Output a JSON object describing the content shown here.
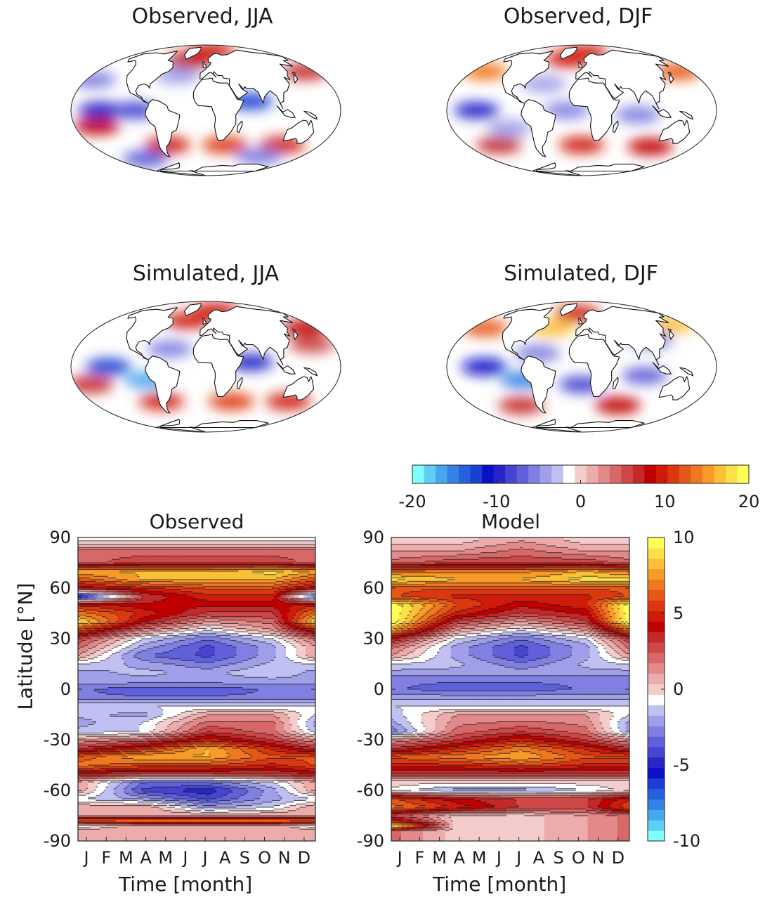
{
  "chart_data": [
    {
      "type": "heatmap",
      "title": "Observed, JJA",
      "projection": "mollweide",
      "colorbar": "top-colorbar",
      "regions": [
        {
          "lat": 0,
          "lon": -140,
          "value": -10
        },
        {
          "lat": 0,
          "lon": -95,
          "value": -8
        },
        {
          "lat": -18,
          "lon": -150,
          "value": 8
        },
        {
          "lat": -40,
          "lon": -60,
          "value": 10
        },
        {
          "lat": -40,
          "lon": 30,
          "value": 11
        },
        {
          "lat": -40,
          "lon": 120,
          "value": 10
        },
        {
          "lat": 60,
          "lon": -35,
          "value": 8
        },
        {
          "lat": 75,
          "lon": 20,
          "value": 9
        },
        {
          "lat": 10,
          "lon": 60,
          "value": -12
        },
        {
          "lat": -58,
          "lon": -120,
          "value": -7
        },
        {
          "lat": -55,
          "lon": 100,
          "value": -6
        },
        {
          "lat": 35,
          "lon": -170,
          "value": -5
        },
        {
          "lat": 40,
          "lon": -45,
          "value": -4
        },
        {
          "lat": 45,
          "lon": 165,
          "value": 7
        }
      ]
    },
    {
      "type": "heatmap",
      "title": "Observed, DJF",
      "projection": "mollweide",
      "colorbar": "top-colorbar",
      "regions": [
        {
          "lat": 0,
          "lon": -140,
          "value": -10
        },
        {
          "lat": 0,
          "lon": -20,
          "value": -6
        },
        {
          "lat": -5,
          "lon": 75,
          "value": -5
        },
        {
          "lat": 45,
          "lon": -160,
          "value": 14
        },
        {
          "lat": 45,
          "lon": 160,
          "value": 12
        },
        {
          "lat": 62,
          "lon": -30,
          "value": 9
        },
        {
          "lat": 72,
          "lon": 10,
          "value": 9
        },
        {
          "lat": -40,
          "lon": -130,
          "value": 7
        },
        {
          "lat": -40,
          "lon": 0,
          "value": 9
        },
        {
          "lat": -42,
          "lon": 110,
          "value": 8
        },
        {
          "lat": 30,
          "lon": -55,
          "value": -4
        },
        {
          "lat": -20,
          "lon": -100,
          "value": -4
        }
      ]
    },
    {
      "type": "heatmap",
      "title": "Simulated, JJA",
      "projection": "mollweide",
      "colorbar": "top-colorbar",
      "regions": [
        {
          "lat": 0,
          "lon": -130,
          "value": -12
        },
        {
          "lat": -15,
          "lon": -80,
          "value": -16
        },
        {
          "lat": 5,
          "lon": 60,
          "value": -10
        },
        {
          "lat": 20,
          "lon": -50,
          "value": -6
        },
        {
          "lat": -40,
          "lon": -70,
          "value": 10
        },
        {
          "lat": -40,
          "lon": 40,
          "value": 11
        },
        {
          "lat": -40,
          "lon": 130,
          "value": 10
        },
        {
          "lat": 55,
          "lon": -35,
          "value": 9
        },
        {
          "lat": 70,
          "lon": 25,
          "value": 9
        },
        {
          "lat": 45,
          "lon": 165,
          "value": 8
        },
        {
          "lat": -20,
          "lon": -160,
          "value": 7
        },
        {
          "lat": 25,
          "lon": 150,
          "value": 6
        }
      ]
    },
    {
      "type": "heatmap",
      "title": "Simulated, DJF",
      "projection": "mollweide",
      "colorbar": "top-colorbar",
      "regions": [
        {
          "lat": 0,
          "lon": -130,
          "value": -11
        },
        {
          "lat": -15,
          "lon": -80,
          "value": -15
        },
        {
          "lat": -20,
          "lon": 0,
          "value": -8
        },
        {
          "lat": -10,
          "lon": 85,
          "value": -7
        },
        {
          "lat": 15,
          "lon": -60,
          "value": -6
        },
        {
          "lat": 45,
          "lon": -50,
          "value": 16
        },
        {
          "lat": 50,
          "lon": 160,
          "value": 17
        },
        {
          "lat": 45,
          "lon": -160,
          "value": 12
        },
        {
          "lat": 65,
          "lon": -10,
          "value": 10
        },
        {
          "lat": -45,
          "lon": -100,
          "value": 7
        },
        {
          "lat": -45,
          "lon": 60,
          "value": 8
        },
        {
          "lat": 30,
          "lon": 100,
          "value": -5
        }
      ]
    },
    {
      "type": "heatmap",
      "title": "Observed",
      "xlabel": "Time [month]",
      "ylabel": "Latitude [°N]",
      "x_categories": [
        "J",
        "F",
        "M",
        "A",
        "M",
        "J",
        "J",
        "A",
        "S",
        "O",
        "N",
        "D"
      ],
      "yticks": [
        90,
        60,
        30,
        0,
        -30,
        -60,
        -90
      ],
      "ylim": [
        -90,
        90
      ],
      "colorbar": "side-colorbar",
      "latitudes": [
        88,
        82,
        75,
        70,
        65,
        60,
        55,
        50,
        45,
        40,
        35,
        30,
        25,
        20,
        15,
        10,
        5,
        0,
        -5,
        -10,
        -15,
        -20,
        -25,
        -30,
        -35,
        -40,
        -45,
        -50,
        -55,
        -60,
        -65,
        -70,
        -75,
        -78,
        -81,
        -84
      ],
      "profiles": [
        {
          "month": "J",
          "values": [
            -0.5,
            2,
            2,
            8,
            6,
            4,
            -6,
            5,
            7,
            9,
            6,
            3,
            2,
            1,
            -1,
            -2,
            -2,
            -3,
            -3,
            -1,
            -1.5,
            -2,
            -1.5,
            1,
            3,
            6,
            7,
            4,
            1,
            1,
            -1,
            1,
            1,
            7,
            -1,
            1
          ]
        },
        {
          "month": "A",
          "values": [
            -0.5,
            2,
            3,
            8,
            8,
            5,
            3,
            4,
            5,
            4,
            1.5,
            -1,
            -2,
            -3,
            -2,
            -1.5,
            -2,
            -3.5,
            -3,
            -1,
            -2,
            -1,
            -1,
            2,
            5,
            8,
            6,
            3,
            -3,
            -4,
            -2,
            1,
            1,
            7,
            1,
            1
          ]
        },
        {
          "month": "J",
          "values": [
            -0.5,
            2,
            3,
            8,
            8,
            6,
            5,
            4,
            3,
            1,
            -1,
            -3,
            -4,
            -4,
            -3,
            -2,
            -2,
            -3.5,
            -3,
            -1,
            1,
            2,
            3,
            5,
            8,
            8,
            6,
            3,
            -3,
            -5,
            -4,
            -2,
            1,
            7,
            1,
            1
          ]
        },
        {
          "month": "O",
          "values": [
            -0.5,
            2,
            3,
            9,
            8,
            6,
            5,
            4,
            3,
            2,
            1,
            -1,
            -2,
            -2,
            -1.5,
            -1,
            -2,
            -3,
            -3,
            -1,
            1,
            2,
            2,
            3,
            5,
            6,
            5,
            3,
            -1,
            -2,
            -2,
            -1,
            1,
            7,
            1,
            1
          ]
        },
        {
          "month": "D",
          "values": [
            -0.5,
            2,
            2,
            8,
            6,
            4,
            -4,
            5,
            7,
            9,
            5,
            2,
            1,
            1,
            -1,
            -2,
            -2,
            -3,
            -3,
            -1,
            -1,
            -2,
            -1.5,
            1,
            3,
            6,
            6,
            4,
            1,
            1,
            -1,
            1,
            1,
            7,
            -1,
            1
          ]
        }
      ]
    },
    {
      "type": "heatmap",
      "title": "Model",
      "xlabel": "Time [month]",
      "x_categories": [
        "J",
        "F",
        "M",
        "A",
        "M",
        "J",
        "J",
        "A",
        "S",
        "O",
        "N",
        "D"
      ],
      "yticks": [
        90,
        60,
        30,
        0,
        -30,
        -60,
        -90
      ],
      "ylim": [
        -90,
        90
      ],
      "colorbar": "side-colorbar",
      "latitudes": [
        88,
        82,
        75,
        70,
        65,
        60,
        55,
        50,
        45,
        40,
        35,
        30,
        25,
        20,
        15,
        10,
        5,
        0,
        -5,
        -10,
        -15,
        -20,
        -25,
        -30,
        -35,
        -40,
        -45,
        -50,
        -55,
        -60,
        -65,
        -70,
        -75,
        -78,
        -81,
        -84
      ],
      "profiles": [
        {
          "month": "J",
          "values": [
            0,
            1,
            2,
            7,
            9,
            6,
            6,
            10,
            10,
            10,
            8,
            4,
            2,
            1,
            -1,
            -2,
            -3,
            -3,
            -2,
            -1,
            -1.5,
            -2,
            -3,
            1,
            3,
            6,
            5,
            3,
            0,
            -0.5,
            6,
            7,
            3,
            5,
            10,
            2
          ]
        },
        {
          "month": "A",
          "values": [
            0,
            1,
            3,
            7,
            8,
            6,
            5,
            6,
            5,
            3,
            1,
            -1,
            -2,
            -2,
            -1.5,
            -2,
            -3,
            -3.5,
            -2,
            -1,
            1,
            1.5,
            2,
            3,
            5,
            7,
            5,
            3,
            0,
            -2,
            4,
            5,
            0,
            0,
            0,
            0
          ]
        },
        {
          "month": "J",
          "values": [
            1,
            2,
            3,
            7,
            8,
            6,
            5,
            4,
            3,
            1,
            -1,
            -3,
            -4,
            -4,
            -3,
            -2,
            -3,
            -3.5,
            -2,
            -1,
            1,
            2,
            3,
            5,
            7,
            8,
            6,
            3,
            0,
            -2,
            3,
            3,
            0,
            0,
            0,
            0
          ]
        },
        {
          "month": "O",
          "values": [
            0,
            1,
            3,
            8,
            9,
            6,
            5,
            5,
            4,
            3,
            1,
            -1,
            -2,
            -2,
            -1.5,
            -2,
            -3,
            -3,
            -2,
            -1,
            1,
            1.5,
            2,
            3,
            5,
            6,
            5,
            3,
            0,
            -1,
            3,
            3,
            1,
            1,
            1,
            1
          ]
        },
        {
          "month": "D",
          "values": [
            0,
            1,
            2,
            7,
            9,
            6,
            6,
            10,
            10,
            10,
            7,
            3,
            2,
            1,
            -1,
            -2,
            -3,
            -3,
            -2,
            -1,
            -1,
            -2,
            -2,
            1,
            3,
            6,
            5,
            3,
            0,
            0,
            5,
            6,
            2,
            2,
            2,
            2
          ]
        }
      ]
    }
  ],
  "titles": {
    "obs_jja": "Observed, JJA",
    "obs_djf": "Observed, DJF",
    "sim_jja": "Simulated, JJA",
    "sim_djf": "Simulated, DJF",
    "hov_obs": "Observed",
    "hov_model": "Model"
  },
  "axes": {
    "ylabel": "Latitude [°N]",
    "xlabel": "Time [month]",
    "yticks": [
      "90",
      "60",
      "30",
      "0",
      "-30",
      "-60",
      "-90"
    ],
    "months": [
      "J",
      "F",
      "M",
      "A",
      "M",
      "J",
      "J",
      "A",
      "S",
      "O",
      "N",
      "D"
    ]
  },
  "top_colorbar": {
    "min": -20,
    "max": 20,
    "tick_labels": [
      "-20",
      "-10",
      "0",
      "10",
      "20"
    ],
    "colors": [
      "#80ffff",
      "#5fd0f5",
      "#48a8ee",
      "#3582e6",
      "#2660dc",
      "#1a40d2",
      "#0a10c8",
      "#2525c8",
      "#4545d2",
      "#6060da",
      "#8080e2",
      "#a0a0ea",
      "#c0c0f2",
      "#ffffff",
      "#f4cccc",
      "#ecacac",
      "#e28a8a",
      "#d86868",
      "#ce4848",
      "#c42828",
      "#c00000",
      "#d01a0a",
      "#dc3810",
      "#e65818",
      "#f07820",
      "#f89a28",
      "#fcc038",
      "#fce048",
      "#ffff55"
    ]
  },
  "side_colorbar": {
    "min": -10,
    "max": 10,
    "tick_labels": [
      "10",
      "5",
      "0",
      "-5",
      "-10"
    ],
    "colors": [
      "#80ffff",
      "#5fd0f5",
      "#48a8ee",
      "#3582e6",
      "#2660dc",
      "#1a40d2",
      "#0a10c8",
      "#2525c8",
      "#4545d2",
      "#6060da",
      "#8080e2",
      "#a0a0ea",
      "#c0c0f2",
      "#ffffff",
      "#f4cccc",
      "#ecacac",
      "#e28a8a",
      "#d86868",
      "#ce4848",
      "#c42828",
      "#c00000",
      "#d01a0a",
      "#dc3810",
      "#e65818",
      "#f07820",
      "#f89a28",
      "#fcc038",
      "#fce048",
      "#ffff55"
    ]
  }
}
